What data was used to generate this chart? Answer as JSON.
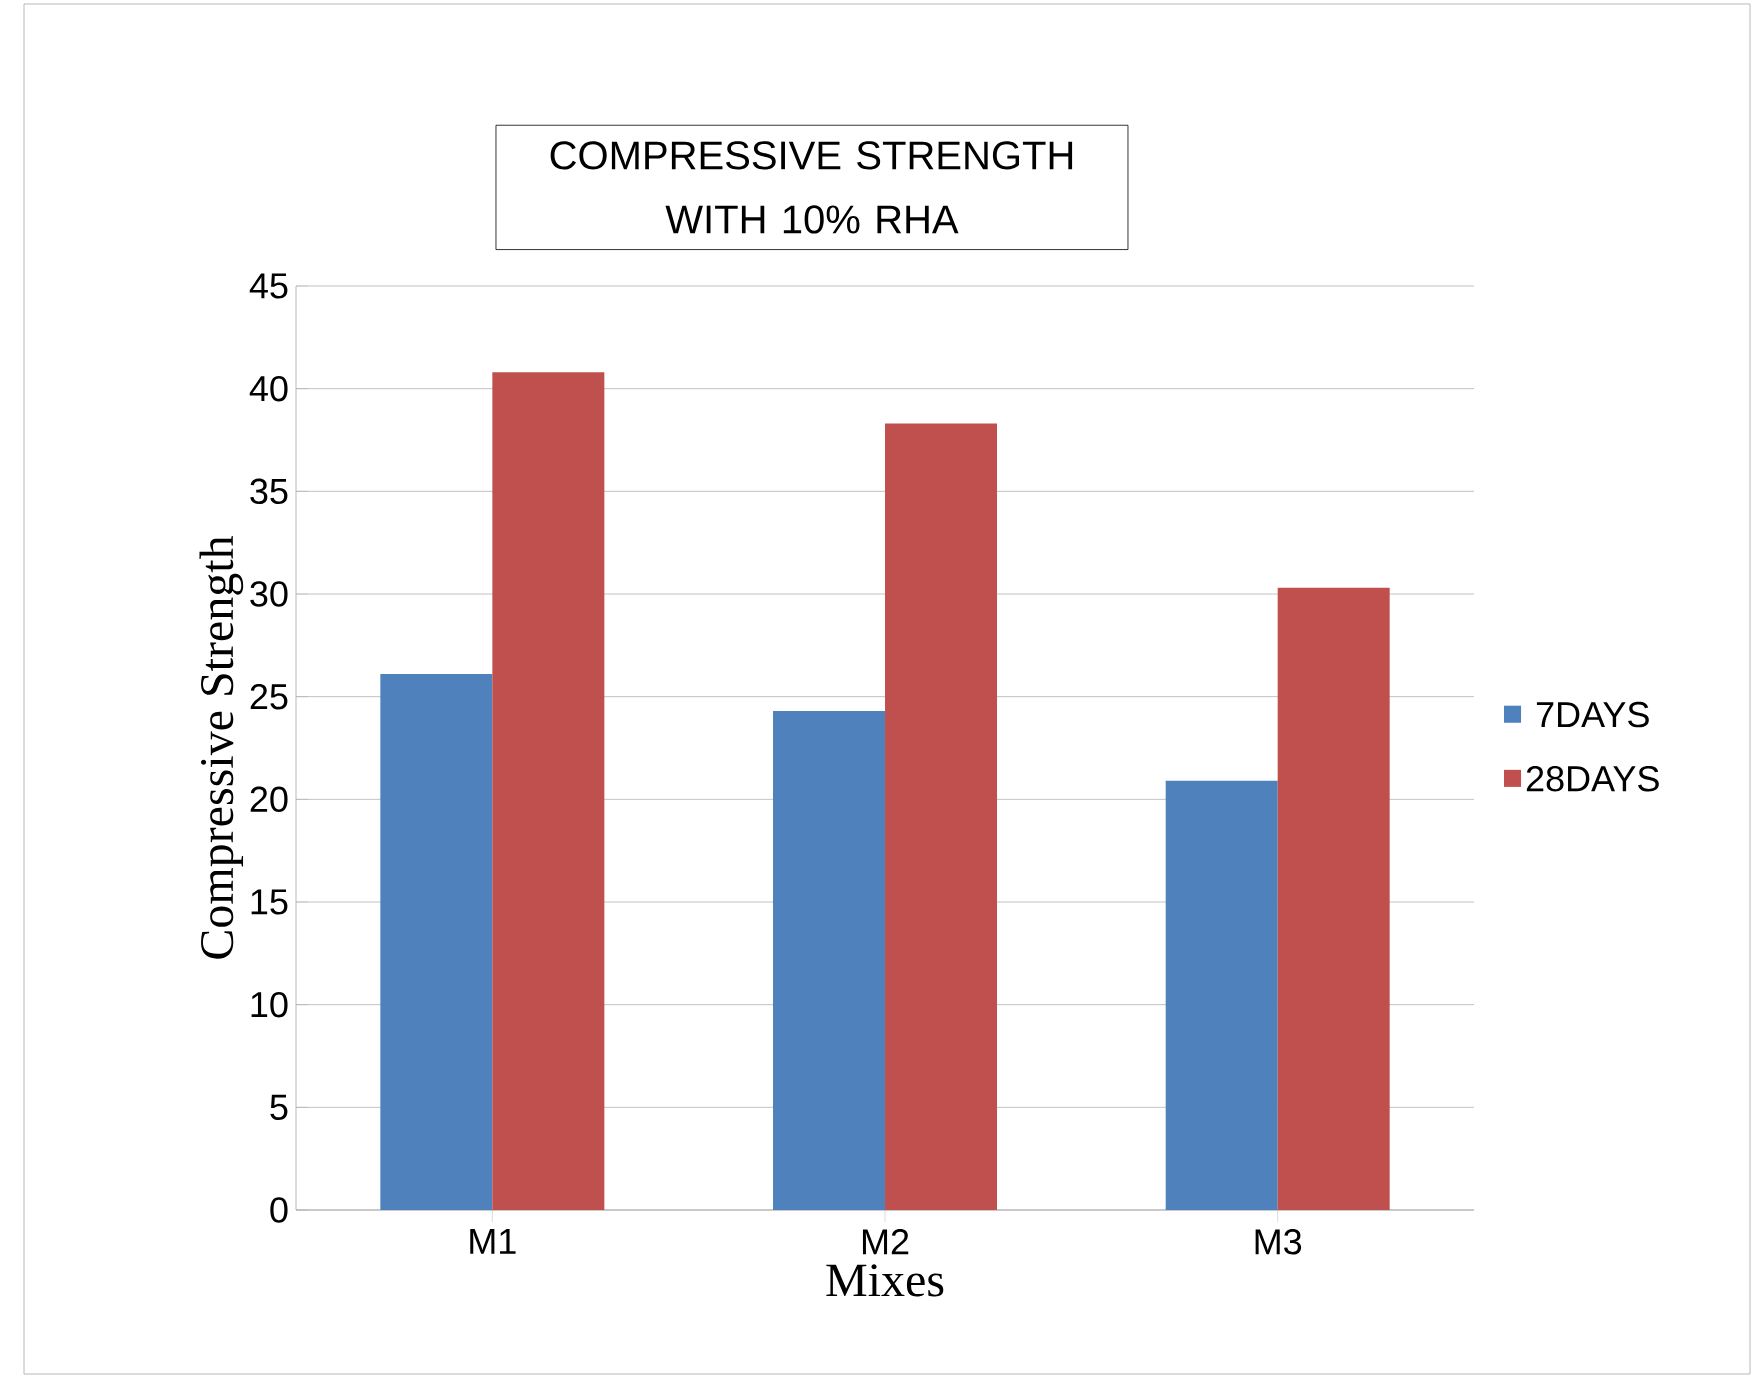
{
  "chart_data": {
    "type": "bar",
    "title": "COMPRESSIVE STRENGTH WITH 10% RHA",
    "xlabel": "Mixes",
    "ylabel": "Compressive Strength",
    "categories": [
      "M1",
      "M2",
      "M3"
    ],
    "series": [
      {
        "name": "7DAYS",
        "color": "#4f81bd",
        "values": [
          26.1,
          24.3,
          20.9
        ]
      },
      {
        "name": "28DAYS",
        "color": "#c0504d",
        "values": [
          40.8,
          38.3,
          30.3
        ]
      }
    ],
    "ylim": [
      0,
      45
    ],
    "yticks": [
      0,
      5,
      10,
      15,
      20,
      25,
      30,
      35,
      40,
      45
    ],
    "grid": "y",
    "legend": "right"
  }
}
